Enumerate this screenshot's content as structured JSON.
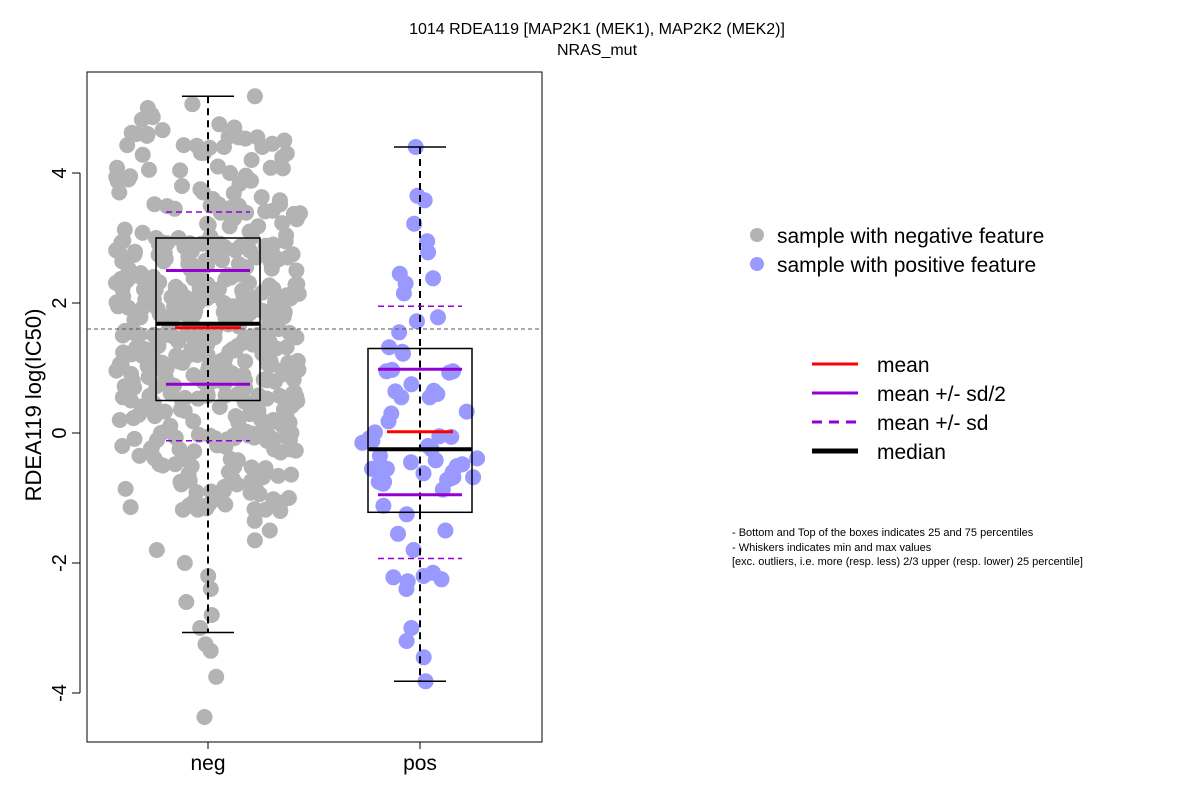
{
  "chart_data": {
    "type": "scatter",
    "title": "1014 RDEA119 [MAP2K1 (MEK1), MAP2K2 (MEK2)]",
    "subtitle": "NRAS_mut",
    "ylabel": "RDEA119 log(IC50)",
    "xlabel": "",
    "categories": [
      "neg",
      "pos"
    ],
    "ylim": [
      -4.7,
      5.6
    ],
    "yticks": [
      -4,
      -2,
      0,
      2,
      4
    ],
    "reference_line_y": 1.6,
    "colors": {
      "neg": "#b3b3b3",
      "pos": "#9999ff"
    },
    "groups": [
      {
        "category": "neg",
        "whisker_min": -3.07,
        "q1": 0.5,
        "median": 1.68,
        "q3": 3.0,
        "whisker_max": 5.18,
        "mean": 1.62,
        "mean_minus_sd2": 0.75,
        "mean_plus_sd2": 2.5,
        "mean_minus_sd": -0.12,
        "mean_plus_sd": 3.4,
        "n_points": 520,
        "points": [
          5.18,
          5.06,
          5.06,
          5.0,
          4.9,
          4.86,
          4.82,
          4.75,
          4.7,
          4.66,
          4.62,
          4.6,
          4.55,
          4.5,
          4.45,
          4.4,
          4.3,
          4.2,
          4.1,
          4.0,
          3.9,
          3.8,
          3.7,
          3.6,
          3.5,
          3.4,
          3.3,
          3.2,
          3.1,
          3.0,
          2.9,
          2.8,
          2.7,
          2.6,
          2.5,
          2.4,
          2.3,
          2.2,
          2.1,
          2.0,
          1.9,
          1.8,
          1.7,
          1.6,
          1.5,
          1.4,
          1.3,
          1.2,
          1.1,
          1.0,
          0.9,
          0.8,
          0.7,
          0.6,
          0.5,
          0.4,
          0.3,
          0.2,
          0.1,
          0.0,
          -0.1,
          -0.2,
          -0.3,
          -0.4,
          -0.5,
          -0.6,
          -0.75,
          -0.9,
          -1.05,
          -1.2,
          -1.35,
          -1.5,
          -1.65,
          -1.8,
          -2.0,
          -2.2,
          -2.4,
          -2.6,
          -2.8,
          -3.0,
          -3.25,
          -3.35,
          -3.75,
          -4.37
        ]
      },
      {
        "category": "pos",
        "whisker_min": -3.82,
        "q1": -1.22,
        "median": -0.25,
        "q3": 1.3,
        "whisker_max": 4.4,
        "mean": 0.02,
        "mean_minus_sd2": -0.95,
        "mean_plus_sd2": 0.98,
        "mean_minus_sd": -1.93,
        "mean_plus_sd": 1.95,
        "n_points": 72,
        "points": [
          4.4,
          3.65,
          3.58,
          3.22,
          2.95,
          2.78,
          2.45,
          2.38,
          2.3,
          2.15,
          1.78,
          1.72,
          1.55,
          1.32,
          1.25,
          1.22,
          0.75,
          0.65,
          0.6,
          0.55,
          0.55,
          0.3,
          0.18,
          -0.05,
          -0.08,
          -0.12,
          -0.15,
          -0.2,
          -0.25,
          -0.35,
          -0.42,
          -0.45,
          -0.52,
          -0.55,
          -0.58,
          -0.6,
          -0.62,
          -0.68,
          -0.7,
          -0.72,
          -0.75,
          -0.75,
          -0.78,
          -1.12,
          -1.25,
          -1.5,
          -1.55,
          -1.8,
          -2.15,
          -2.2,
          -2.22,
          -2.25,
          -2.28,
          -2.4,
          -3.0,
          -3.2,
          -3.45,
          -3.82
        ]
      }
    ]
  },
  "legend": {
    "points": [
      {
        "label": "sample with negative feature",
        "color": "#b3b3b3"
      },
      {
        "label": "sample with positive feature",
        "color": "#9999ff"
      }
    ],
    "lines": [
      {
        "label": "mean",
        "color": "#ff0000",
        "style": "solid"
      },
      {
        "label": "mean +/- sd/2",
        "color": "#9400d3",
        "style": "solid"
      },
      {
        "label": "mean +/- sd",
        "color": "#9400d3",
        "style": "dashed"
      },
      {
        "label": "median",
        "color": "#000000",
        "style": "solid-thick"
      }
    ]
  },
  "notes": [
    "- Bottom and Top of the boxes indicates 25 and 75 percentiles",
    "- Whiskers indicates min and max values",
    "[exc. outliers, i.e. more (resp. less) 2/3 upper (resp. lower) 25 percentile]"
  ]
}
